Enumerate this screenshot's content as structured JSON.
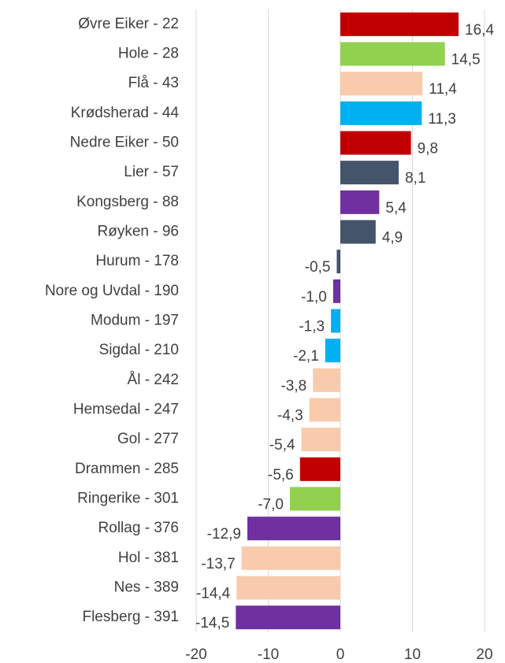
{
  "chart_data": {
    "type": "barh",
    "categories": [
      "Øvre Eiker - 22",
      "Hole - 28",
      "Flå - 43",
      "Krødsherad - 44",
      "Nedre Eiker - 50",
      "Lier - 57",
      "Kongsberg - 88",
      "Røyken - 96",
      "Hurum - 178",
      "Nore og Uvdal - 190",
      "Modum - 197",
      "Sigdal - 210",
      "Ål - 242",
      "Hemsedal - 247",
      "Gol - 277",
      "Drammen - 285",
      "Ringerike - 301",
      "Rollag - 376",
      "Hol - 381",
      "Nes - 389",
      "Flesberg - 391"
    ],
    "values": [
      16.4,
      14.5,
      11.4,
      11.3,
      9.8,
      8.1,
      5.4,
      4.9,
      -0.5,
      -1.0,
      -1.3,
      -2.1,
      -3.8,
      -4.3,
      -5.4,
      -5.6,
      -7.0,
      -12.9,
      -13.7,
      -14.4,
      -14.5
    ],
    "value_labels": [
      "16,4",
      "14,5",
      "11,4",
      "11,3",
      "9,8",
      "8,1",
      "5,4",
      "4,9",
      "-0,5",
      "-1,0",
      "-1,3",
      "-2,1",
      "-3,8",
      "-4,3",
      "-5,4",
      "-5,6",
      "-7,0",
      "-12,9",
      "-13,7",
      "-14,4",
      "-14,5"
    ],
    "colors": [
      "#c00000",
      "#92d050",
      "#f8cbad",
      "#00b0f0",
      "#c00000",
      "#44546a",
      "#7030a0",
      "#44546a",
      "#44546a",
      "#7030a0",
      "#00b0f0",
      "#00b0f0",
      "#f8cbad",
      "#f8cbad",
      "#f8cbad",
      "#c00000",
      "#92d050",
      "#7030a0",
      "#f8cbad",
      "#f8cbad",
      "#7030a0"
    ],
    "xlim": [
      -20,
      20
    ],
    "xticks": [
      -20,
      -10,
      0,
      10,
      20
    ],
    "grid": true
  }
}
